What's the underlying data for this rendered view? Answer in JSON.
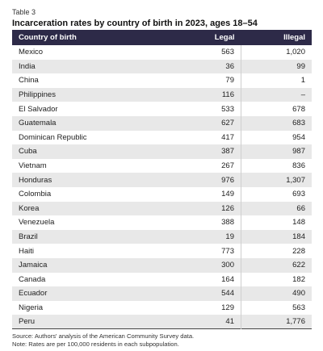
{
  "table_label": "Table 3",
  "title": "Incarceration rates by country of birth in 2023, ages 18–54",
  "columns": [
    "Country of birth",
    "Legal",
    "Illegal"
  ],
  "rows": [
    [
      "Mexico",
      "563",
      "1,020"
    ],
    [
      "India",
      "36",
      "99"
    ],
    [
      "China",
      "79",
      "1"
    ],
    [
      "Philippines",
      "116",
      "–"
    ],
    [
      "El Salvador",
      "533",
      "678"
    ],
    [
      "Guatemala",
      "627",
      "683"
    ],
    [
      "Dominican Republic",
      "417",
      "954"
    ],
    [
      "Cuba",
      "387",
      "987"
    ],
    [
      "Vietnam",
      "267",
      "836"
    ],
    [
      "Honduras",
      "976",
      "1,307"
    ],
    [
      "Colombia",
      "149",
      "693"
    ],
    [
      "Korea",
      "126",
      "66"
    ],
    [
      "Venezuela",
      "388",
      "148"
    ],
    [
      "Brazil",
      "19",
      "184"
    ],
    [
      "Haiti",
      "773",
      "228"
    ],
    [
      "Jamaica",
      "300",
      "622"
    ],
    [
      "Canada",
      "164",
      "182"
    ],
    [
      "Ecuador",
      "544",
      "490"
    ],
    [
      "Nigeria",
      "129",
      "563"
    ],
    [
      "Peru",
      "41",
      "1,776"
    ]
  ],
  "source_note": "Source: Authors' analysis of the American Community Survey data.",
  "rates_note": "Note: Rates are per 100,000 residents in each subpopulation.",
  "colors": {
    "header_bg": "#2d2a48",
    "stripe_bg": "#e8e8e8"
  }
}
